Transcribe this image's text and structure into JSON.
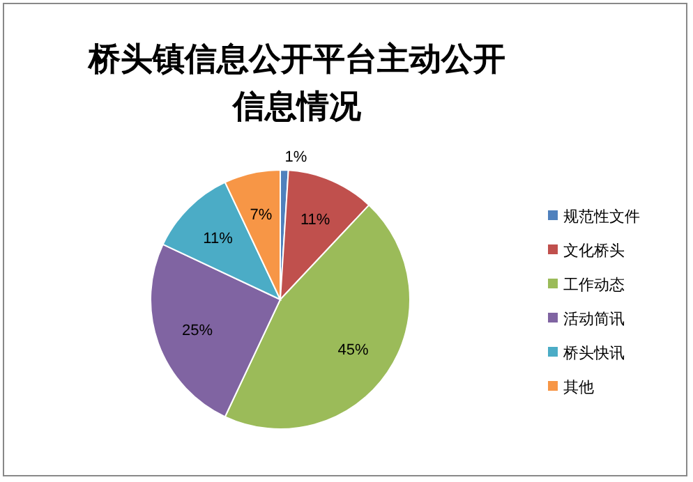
{
  "chart_data": {
    "type": "pie",
    "title": "桥头镇信息公开平台主动公开信息情况",
    "categories": [
      "规范性文件",
      "文化桥头",
      "工作动态",
      "活动简讯",
      "桥头快讯",
      "其他"
    ],
    "values": [
      1,
      11,
      45,
      25,
      11,
      7
    ],
    "value_labels": [
      "1%",
      "11%",
      "45%",
      "25%",
      "11%",
      "7%"
    ],
    "colors": [
      "#4f81bd",
      "#c0504d",
      "#9bbb59",
      "#8064a2",
      "#4bacc6",
      "#f79646"
    ],
    "legend": "right"
  }
}
